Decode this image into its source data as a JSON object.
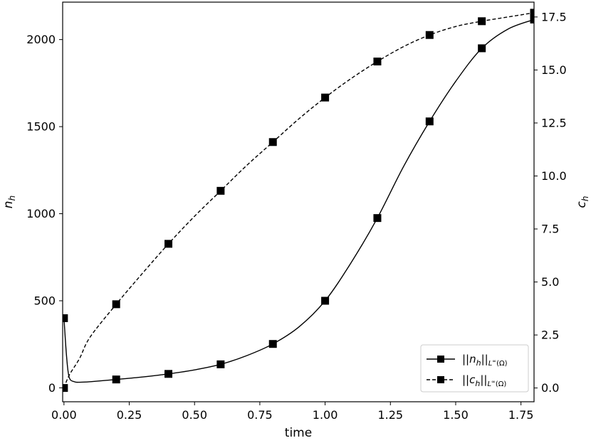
{
  "chart_data": {
    "type": "line",
    "xlabel": "time",
    "ylabel_left": "n",
    "ylabel_left_sub": "h",
    "ylabel_right": "c",
    "ylabel_right_sub": "h",
    "xlim": [
      -0.005,
      1.8
    ],
    "ylim_left": [
      -80,
      2215
    ],
    "ylim_right": [
      -0.65,
      18.2
    ],
    "grid": false,
    "legend_position": "lower-right",
    "x_ticks": [
      "0.00",
      "0.25",
      "0.50",
      "0.75",
      "1.00",
      "1.25",
      "1.50",
      "1.75"
    ],
    "y_left_ticks": [
      "0",
      "500",
      "1000",
      "1500",
      "2000"
    ],
    "y_right_ticks": [
      "0.0",
      "2.5",
      "5.0",
      "7.5",
      "10.0",
      "12.5",
      "15.0",
      "17.5"
    ],
    "series": [
      {
        "name": "||n_h||_{L^∞(Ω)}",
        "axis": "left",
        "line_style": "solid",
        "color": "#000000",
        "marker": "square",
        "curve": [
          [
            0.0,
            400
          ],
          [
            0.01,
            180
          ],
          [
            0.02,
            60
          ],
          [
            0.04,
            35
          ],
          [
            0.06,
            32
          ],
          [
            0.1,
            35
          ],
          [
            0.2,
            48
          ],
          [
            0.3,
            62
          ],
          [
            0.4,
            80
          ],
          [
            0.5,
            103
          ],
          [
            0.6,
            135
          ],
          [
            0.7,
            185
          ],
          [
            0.8,
            252
          ],
          [
            0.9,
            350
          ],
          [
            1.0,
            500
          ],
          [
            1.1,
            720
          ],
          [
            1.2,
            975
          ],
          [
            1.3,
            1270
          ],
          [
            1.4,
            1530
          ],
          [
            1.5,
            1760
          ],
          [
            1.6,
            1950
          ],
          [
            1.7,
            2060
          ],
          [
            1.8,
            2115
          ]
        ],
        "markers": [
          [
            0.0,
            400
          ],
          [
            0.2,
            48
          ],
          [
            0.4,
            80
          ],
          [
            0.6,
            135
          ],
          [
            0.8,
            252
          ],
          [
            1.0,
            500
          ],
          [
            1.2,
            975
          ],
          [
            1.4,
            1530
          ],
          [
            1.6,
            1950
          ],
          [
            1.8,
            2115
          ]
        ]
      },
      {
        "name": "||c_h||_{L^∞(Ω)}",
        "axis": "right",
        "line_style": "dashed",
        "color": "#000000",
        "marker": "square",
        "curve": [
          [
            0.0,
            0.0
          ],
          [
            0.02,
            0.6
          ],
          [
            0.06,
            1.4
          ],
          [
            0.1,
            2.4
          ],
          [
            0.2,
            3.95
          ],
          [
            0.3,
            5.4
          ],
          [
            0.4,
            6.8
          ],
          [
            0.5,
            8.1
          ],
          [
            0.6,
            9.3
          ],
          [
            0.7,
            10.5
          ],
          [
            0.8,
            11.6
          ],
          [
            0.9,
            12.7
          ],
          [
            1.0,
            13.7
          ],
          [
            1.1,
            14.6
          ],
          [
            1.2,
            15.4
          ],
          [
            1.3,
            16.1
          ],
          [
            1.4,
            16.65
          ],
          [
            1.5,
            17.05
          ],
          [
            1.6,
            17.3
          ],
          [
            1.7,
            17.5
          ],
          [
            1.8,
            17.7
          ]
        ],
        "markers": [
          [
            0.0,
            0.0
          ],
          [
            0.2,
            3.95
          ],
          [
            0.4,
            6.8
          ],
          [
            0.6,
            9.3
          ],
          [
            0.8,
            11.6
          ],
          [
            1.0,
            13.7
          ],
          [
            1.2,
            15.4
          ],
          [
            1.4,
            16.65
          ],
          [
            1.6,
            17.3
          ],
          [
            1.8,
            17.7
          ]
        ]
      }
    ]
  }
}
